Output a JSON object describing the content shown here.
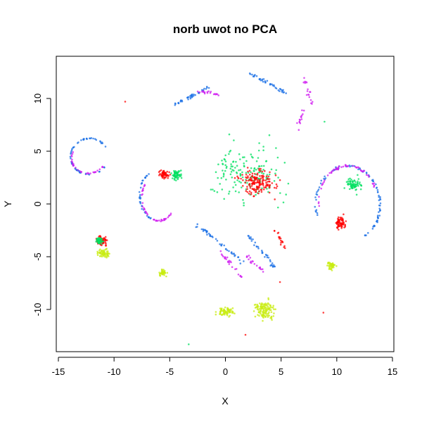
{
  "chart_data": {
    "type": "scatter",
    "title": "norb uwot no PCA",
    "xlabel": "X",
    "ylabel": "Y",
    "xlim": [
      -15,
      15
    ],
    "ylim": [
      -14,
      14
    ],
    "xticks": [
      -15,
      -10,
      -5,
      0,
      5,
      10,
      15
    ],
    "yticks": [
      -10,
      -5,
      0,
      5,
      10
    ],
    "grid": false,
    "legend": "none",
    "colors": {
      "red": "#ff0000",
      "green": "#00e060",
      "blue": "#1a6fe6",
      "magenta": "#d01cf0",
      "yellow": "#c8ec10"
    },
    "clusters": [
      {
        "color": "blue",
        "shape": "arc",
        "cx": -12.2,
        "cy": 4.5,
        "rx": 1.7,
        "ry": 1.7,
        "from": 20,
        "to": 330,
        "n": 60
      },
      {
        "color": "magenta",
        "shape": "arc",
        "cx": -12.3,
        "cy": 4.3,
        "rx": 1.5,
        "ry": 1.4,
        "from": 150,
        "to": 330,
        "n": 30
      },
      {
        "color": "red",
        "shape": "blob",
        "cx": -5.5,
        "cy": 2.8,
        "rx": 0.6,
        "ry": 0.5,
        "n": 60
      },
      {
        "color": "green",
        "shape": "blob",
        "cx": -4.4,
        "cy": 2.8,
        "rx": 0.6,
        "ry": 0.6,
        "n": 60
      },
      {
        "color": "blue",
        "shape": "arc",
        "cx": -6.0,
        "cy": 0.8,
        "rx": 1.7,
        "ry": 2.4,
        "from": 110,
        "to": 250,
        "n": 35
      },
      {
        "color": "magenta",
        "shape": "arc",
        "cx": -6.0,
        "cy": 0.6,
        "rx": 1.5,
        "ry": 2.2,
        "from": 140,
        "to": 320,
        "n": 45
      },
      {
        "color": "red",
        "shape": "blob",
        "cx": -11.1,
        "cy": -3.5,
        "rx": 0.7,
        "ry": 0.6,
        "n": 70
      },
      {
        "color": "green",
        "shape": "blob",
        "cx": -11.3,
        "cy": -3.5,
        "rx": 0.5,
        "ry": 0.4,
        "n": 50
      },
      {
        "color": "yellow",
        "shape": "blob",
        "cx": -11.0,
        "cy": -4.7,
        "rx": 0.8,
        "ry": 0.6,
        "n": 60
      },
      {
        "color": "yellow",
        "shape": "blob",
        "cx": -5.6,
        "cy": -6.6,
        "rx": 0.6,
        "ry": 0.5,
        "n": 40
      },
      {
        "color": "blue",
        "shape": "segment",
        "x1": -4.5,
        "y1": 9.5,
        "x2": -1.5,
        "y2": 11.0,
        "n": 40
      },
      {
        "color": "magenta",
        "shape": "segment",
        "x1": -2.5,
        "y1": 10.8,
        "x2": -0.3,
        "y2": 10.2,
        "n": 20
      },
      {
        "color": "blue",
        "shape": "segment",
        "x1": 2.0,
        "y1": 12.5,
        "x2": 5.5,
        "y2": 10.5,
        "n": 40
      },
      {
        "color": "magenta",
        "shape": "segment",
        "x1": 7.0,
        "y1": 12.0,
        "x2": 7.8,
        "y2": 9.5,
        "n": 18
      },
      {
        "color": "magenta",
        "shape": "segment",
        "x1": 7.0,
        "y1": 9.0,
        "x2": 6.5,
        "y2": 7.0,
        "n": 14
      },
      {
        "color": "green",
        "shape": "blob",
        "cx": 2.0,
        "cy": 3.0,
        "rx": 4.5,
        "ry": 4.0,
        "n": 160
      },
      {
        "color": "red",
        "shape": "blob",
        "cx": 3.0,
        "cy": 2.0,
        "rx": 2.4,
        "ry": 1.8,
        "n": 160
      },
      {
        "color": "red",
        "shape": "segment",
        "x1": 4.5,
        "y1": -2.5,
        "x2": 5.5,
        "y2": -4.5,
        "n": 18
      },
      {
        "color": "blue",
        "shape": "segment",
        "x1": -2.5,
        "y1": -2.0,
        "x2": 1.5,
        "y2": -5.5,
        "n": 45
      },
      {
        "color": "magenta",
        "shape": "segment",
        "x1": -0.5,
        "y1": -4.5,
        "x2": 1.5,
        "y2": -7.0,
        "n": 25
      },
      {
        "color": "blue",
        "shape": "segment",
        "x1": 2.0,
        "y1": -3.0,
        "x2": 4.5,
        "y2": -6.0,
        "n": 35
      },
      {
        "color": "magenta",
        "shape": "segment",
        "x1": 2.0,
        "y1": -5.0,
        "x2": 3.5,
        "y2": -6.5,
        "n": 20
      },
      {
        "color": "blue",
        "shape": "arc",
        "cx": 11.0,
        "cy": 0.0,
        "rx": 2.9,
        "ry": 3.6,
        "from": -60,
        "to": 200,
        "n": 90
      },
      {
        "color": "magenta",
        "shape": "arc",
        "cx": 11.0,
        "cy": 0.3,
        "rx": 2.6,
        "ry": 3.3,
        "from": 20,
        "to": 190,
        "n": 55
      },
      {
        "color": "green",
        "shape": "blob",
        "cx": 11.5,
        "cy": 1.8,
        "rx": 1.0,
        "ry": 1.0,
        "n": 70
      },
      {
        "color": "red",
        "shape": "blob",
        "cx": 10.3,
        "cy": -1.8,
        "rx": 0.6,
        "ry": 0.9,
        "n": 70
      },
      {
        "color": "yellow",
        "shape": "blob",
        "cx": 9.5,
        "cy": -5.9,
        "rx": 0.6,
        "ry": 0.6,
        "n": 45
      },
      {
        "color": "yellow",
        "shape": "blob",
        "cx": 3.5,
        "cy": -10.0,
        "rx": 1.4,
        "ry": 1.2,
        "n": 120
      },
      {
        "color": "yellow",
        "shape": "blob",
        "cx": 0.0,
        "cy": -10.2,
        "rx": 1.1,
        "ry": 0.6,
        "n": 70
      },
      {
        "color": "red",
        "shape": "point",
        "x": -9.0,
        "y": 9.7
      },
      {
        "color": "red",
        "shape": "point",
        "x": 8.8,
        "y": -10.3
      },
      {
        "color": "red",
        "shape": "point",
        "x": 1.8,
        "y": -12.4
      },
      {
        "color": "green",
        "shape": "point",
        "x": -3.3,
        "y": -13.3
      },
      {
        "color": "green",
        "shape": "point",
        "x": 8.9,
        "y": 7.8
      },
      {
        "color": "red",
        "shape": "point",
        "x": 4.9,
        "y": -7.4
      }
    ]
  }
}
